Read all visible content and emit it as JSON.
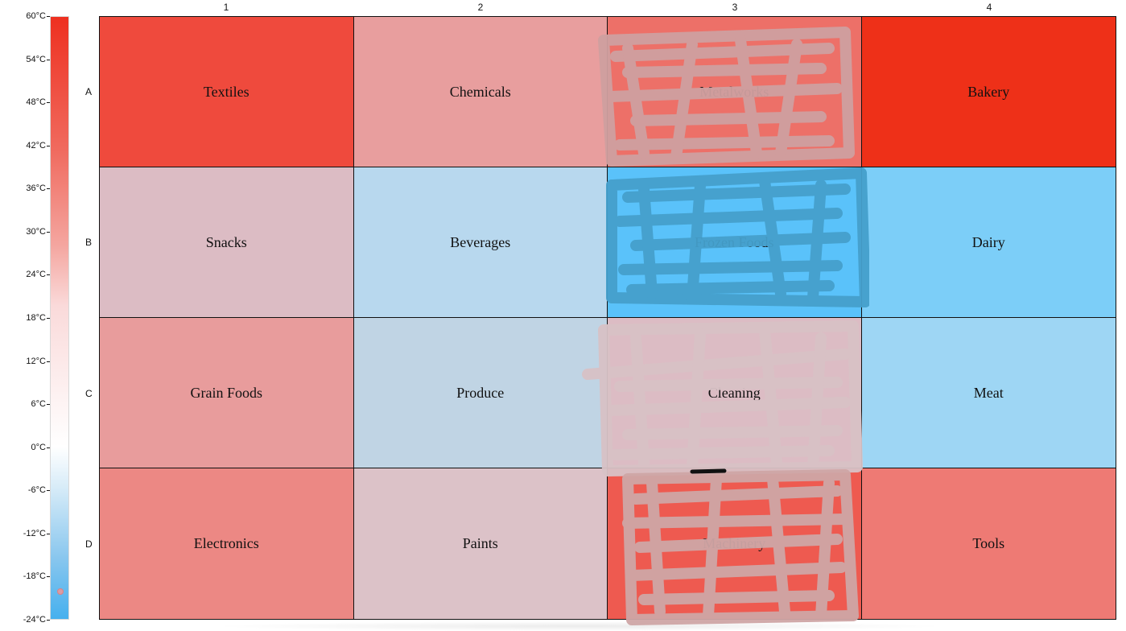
{
  "colorbar": {
    "ticks": [
      "60°C",
      "54°C",
      "48°C",
      "42°C",
      "36°C",
      "30°C",
      "24°C",
      "18°C",
      "12°C",
      "6°C",
      "0°C",
      "-6°C",
      "-12°C",
      "-18°C",
      "-24°C"
    ],
    "min": -24,
    "max": 60,
    "unit": "°C",
    "handle_value": -20
  },
  "columns": [
    "1",
    "2",
    "3",
    "4"
  ],
  "rows": [
    "A",
    "B",
    "C",
    "D"
  ],
  "cells": [
    {
      "label": "Textiles",
      "color": "#ef4a3d"
    },
    {
      "label": "Chemicals",
      "color": "#e89e9e"
    },
    {
      "label": "Metalworks",
      "color": "#ed7068"
    },
    {
      "label": "Bakery",
      "color": "#ee3018"
    },
    {
      "label": "Snacks",
      "color": "#dcbcc4"
    },
    {
      "label": "Beverages",
      "color": "#b8d8ee"
    },
    {
      "label": "Frozen Foods",
      "color": "#5ac2fa"
    },
    {
      "label": "Dairy",
      "color": "#7ccef8"
    },
    {
      "label": "Grain Foods",
      "color": "#e89c9c"
    },
    {
      "label": "Produce",
      "color": "#c0d4e4"
    },
    {
      "label": "Cleaning",
      "color": "#dcbcc4"
    },
    {
      "label": "Meat",
      "color": "#9ed6f4"
    },
    {
      "label": "Electronics",
      "color": "#ec8884"
    },
    {
      "label": "Paints",
      "color": "#dcc2c8"
    },
    {
      "label": "Machinery",
      "color": "#ee5a50"
    },
    {
      "label": "Tools",
      "color": "#ee7a74"
    }
  ]
}
